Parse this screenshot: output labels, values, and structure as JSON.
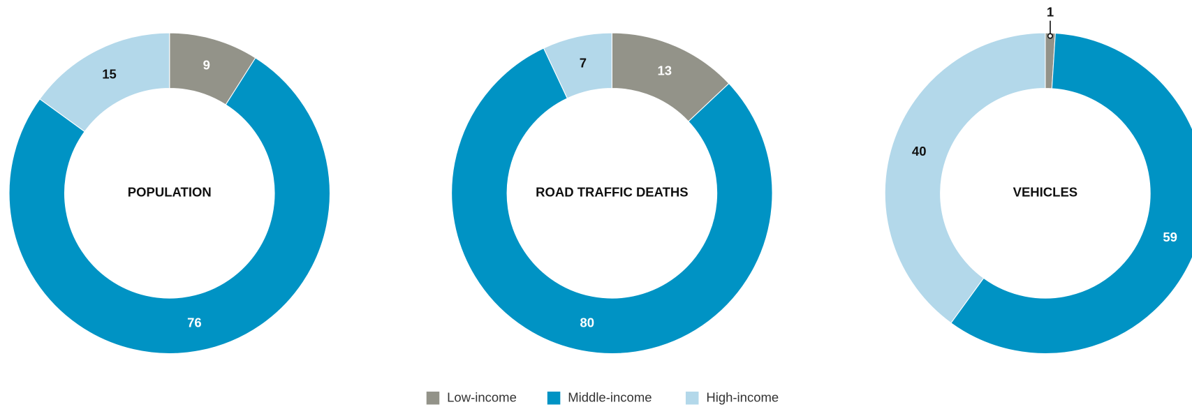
{
  "chart_data": {
    "type": "donut",
    "categories": [
      "Low-income",
      "Middle-income",
      "High-income"
    ],
    "colors": [
      "#939389",
      "#0093c4",
      "#b3d8ea"
    ],
    "series": [
      {
        "name": "POPULATION",
        "values": [
          9,
          76,
          15
        ]
      },
      {
        "name": "ROAD TRAFFIC DEATHS",
        "values": [
          13,
          80,
          7
        ]
      },
      {
        "name": "VEHICLES",
        "values": [
          1,
          59,
          40
        ]
      }
    ]
  }
}
